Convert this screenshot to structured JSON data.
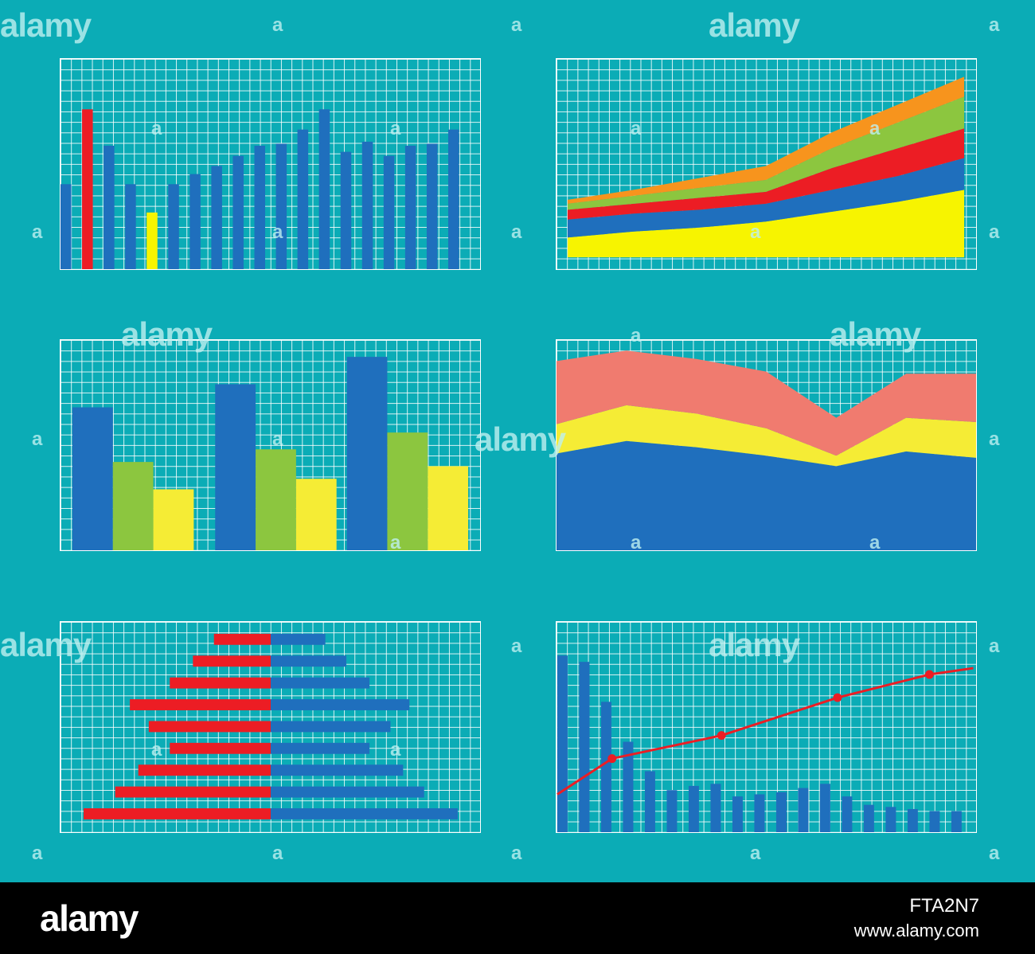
{
  "colors": {
    "background": "#0bacb6",
    "grid": "#ffffff",
    "blue": "#1f6fbd",
    "red": "#ec1d24",
    "yellow": "#f7f400",
    "green": "#8cc63f",
    "orange": "#f7941d",
    "salmon": "#f07b6f",
    "soft_yellow": "#f5ec35"
  },
  "watermark": {
    "text": "alamy",
    "small_mark": "a"
  },
  "footer": {
    "logo": "alamy",
    "image_id": "FTA2N7",
    "url": "www.alamy.com"
  },
  "chart_data": [
    {
      "type": "bar",
      "ylim": [
        0,
        100
      ],
      "values": [
        42,
        79,
        61,
        42,
        28,
        42,
        47,
        51,
        56,
        61,
        62,
        69,
        79,
        58,
        63,
        56,
        61,
        62,
        69
      ],
      "highlights": {
        "1": "red",
        "4": "yellow"
      }
    },
    {
      "type": "area",
      "stacked": true,
      "x": [
        0,
        1,
        2,
        3,
        4,
        5,
        6
      ],
      "ylim": [
        0,
        100
      ],
      "series": [
        {
          "color": "yellow",
          "values": [
            10,
            13,
            15,
            18,
            23,
            28,
            34
          ]
        },
        {
          "color": "blue",
          "values": [
            9,
            9,
            9,
            9,
            11,
            13,
            16
          ]
        },
        {
          "color": "red",
          "values": [
            5,
            5,
            6,
            6,
            11,
            14,
            15
          ]
        },
        {
          "color": "green",
          "values": [
            3,
            4,
            5,
            6,
            10,
            13,
            16
          ]
        },
        {
          "color": "orange",
          "values": [
            2,
            3,
            5,
            7,
            8,
            9,
            10
          ]
        }
      ]
    },
    {
      "type": "bar",
      "grouped": true,
      "ylim": [
        0,
        100
      ],
      "groups": 3,
      "series": [
        {
          "color": "blue",
          "values": [
            68,
            79,
            92
          ]
        },
        {
          "color": "green",
          "values": [
            42,
            48,
            56
          ]
        },
        {
          "color": "soft_yellow",
          "values": [
            29,
            34,
            40
          ]
        }
      ]
    },
    {
      "type": "area",
      "stacked": true,
      "x": [
        0,
        1,
        2,
        3,
        4,
        5,
        6
      ],
      "ylim": [
        0,
        100
      ],
      "series": [
        {
          "color": "blue",
          "values": [
            46,
            52,
            49,
            45,
            40,
            47,
            44
          ]
        },
        {
          "color": "soft_yellow",
          "values": [
            14,
            17,
            16,
            13,
            5,
            16,
            17
          ]
        },
        {
          "color": "salmon",
          "values": [
            30,
            26,
            26,
            27,
            18,
            21,
            23
          ]
        }
      ]
    },
    {
      "type": "bar",
      "orientation": "horizontal",
      "diverging": true,
      "xlim": [
        -100,
        100
      ],
      "series": [
        {
          "color": "red",
          "values": [
            -27,
            -37,
            -48,
            -67,
            -58,
            -48,
            -63,
            -74,
            -89
          ]
        },
        {
          "color": "blue",
          "values": [
            26,
            36,
            47,
            66,
            57,
            47,
            63,
            73,
            89
          ]
        }
      ]
    },
    {
      "type": "bar",
      "ylim": [
        0,
        100
      ],
      "values": [
        84,
        81,
        62,
        43,
        29,
        20,
        22,
        23,
        17,
        18,
        19,
        21,
        23,
        17,
        13,
        12,
        11,
        10,
        10
      ],
      "line": {
        "color": "red",
        "x": [
          0,
          2.5,
          7.5,
          12.8,
          17,
          19
        ],
        "y": [
          18,
          35,
          46,
          64,
          75,
          78
        ],
        "markers": [
          1,
          2,
          3,
          4
        ]
      }
    }
  ]
}
